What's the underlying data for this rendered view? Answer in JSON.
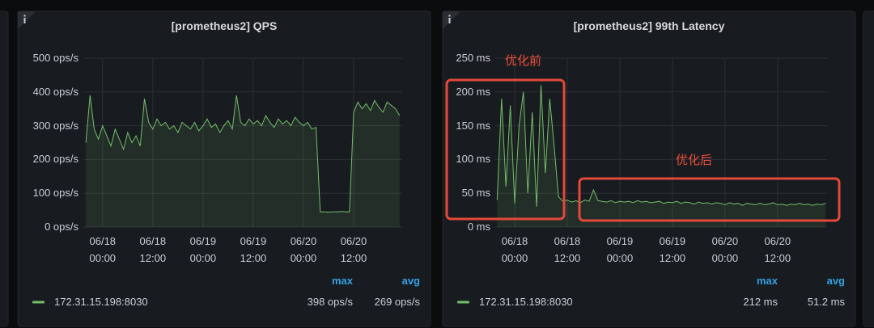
{
  "chart_data": [
    {
      "type": "line",
      "title": "[prometheus2] QPS",
      "x": [
        "06/17 20:00",
        "06/17 21:00",
        "06/17 22:00",
        "06/17 23:00",
        "06/18 00:00",
        "06/18 01:00",
        "06/18 02:00",
        "06/18 03:00",
        "06/18 04:00",
        "06/18 05:00",
        "06/18 06:00",
        "06/18 07:00",
        "06/18 08:00",
        "06/18 09:00",
        "06/18 10:00",
        "06/18 11:00",
        "06/18 12:00",
        "06/18 13:00",
        "06/18 14:00",
        "06/18 15:00",
        "06/18 16:00",
        "06/18 17:00",
        "06/18 18:00",
        "06/18 19:00",
        "06/18 20:00",
        "06/18 21:00",
        "06/18 22:00",
        "06/18 23:00",
        "06/19 00:00",
        "06/19 01:00",
        "06/19 02:00",
        "06/19 03:00",
        "06/19 04:00",
        "06/19 05:00",
        "06/19 06:00",
        "06/19 07:00",
        "06/19 08:00",
        "06/19 09:00",
        "06/19 10:00",
        "06/19 11:00",
        "06/19 12:00",
        "06/19 13:00",
        "06/19 14:00",
        "06/19 15:00",
        "06/19 16:00",
        "06/19 17:00",
        "06/19 18:00",
        "06/19 19:00",
        "06/19 20:00",
        "06/19 21:00",
        "06/19 22:00",
        "06/19 23:00",
        "06/20 00:00",
        "06/20 01:00",
        "06/20 02:00",
        "06/20 03:00",
        "06/20 04:00",
        "06/20 05:00",
        "06/20 06:00",
        "06/20 07:00",
        "06/20 08:00",
        "06/20 09:00",
        "06/20 10:00",
        "06/20 11:00",
        "06/20 12:00",
        "06/20 13:00",
        "06/20 14:00",
        "06/20 15:00",
        "06/20 16:00",
        "06/20 17:00",
        "06/20 18:00",
        "06/20 19:00",
        "06/20 20:00",
        "06/20 21:00",
        "06/20 22:00",
        "06/20 23:00"
      ],
      "series": [
        {
          "name": "172.31.15.198:8030",
          "color": "#73bf69",
          "values": [
            250,
            390,
            290,
            260,
            300,
            270,
            240,
            290,
            260,
            230,
            280,
            250,
            270,
            240,
            380,
            310,
            290,
            320,
            300,
            310,
            290,
            300,
            280,
            310,
            300,
            290,
            310,
            285,
            300,
            320,
            295,
            305,
            280,
            300,
            315,
            290,
            390,
            310,
            300,
            320,
            305,
            315,
            300,
            330,
            310,
            295,
            320,
            305,
            315,
            300,
            325,
            310,
            300,
            310,
            290,
            295,
            45,
            45,
            44,
            45,
            45,
            46,
            45,
            45,
            340,
            370,
            350,
            365,
            345,
            375,
            355,
            340,
            370,
            360,
            350,
            330
          ]
        }
      ],
      "xlim": [
        "06/17 19:24",
        "06/20 23:36"
      ],
      "xticks": [
        "06/18 00:00",
        "06/18 12:00",
        "06/19 00:00",
        "06/19 12:00",
        "06/20 00:00",
        "06/20 12:00"
      ],
      "ylim": [
        0,
        500
      ],
      "yticks": [
        {
          "value": 0,
          "label": "0 ops/s"
        },
        {
          "value": 100,
          "label": "100 ops/s"
        },
        {
          "value": 200,
          "label": "200 ops/s"
        },
        {
          "value": 300,
          "label": "300 ops/s"
        },
        {
          "value": 400,
          "label": "400 ops/s"
        },
        {
          "value": 500,
          "label": "500 ops/s"
        }
      ],
      "grid": true,
      "fill": true,
      "legend": "bottom",
      "legend_stats": [
        {
          "name": "max",
          "value": "398 ops/s"
        },
        {
          "name": "avg",
          "value": "269 ops/s"
        }
      ]
    },
    {
      "type": "line",
      "title": "[prometheus2] 99th Latency",
      "x": [
        "06/17 20:00",
        "06/17 21:00",
        "06/17 22:00",
        "06/17 23:00",
        "06/18 00:00",
        "06/18 01:00",
        "06/18 02:00",
        "06/18 03:00",
        "06/18 04:00",
        "06/18 05:00",
        "06/18 06:00",
        "06/18 07:00",
        "06/18 08:00",
        "06/18 09:00",
        "06/18 10:00",
        "06/18 11:00",
        "06/18 12:00",
        "06/18 13:00",
        "06/18 14:00",
        "06/18 15:00",
        "06/18 16:00",
        "06/18 17:00",
        "06/18 18:00",
        "06/18 19:00",
        "06/18 20:00",
        "06/18 21:00",
        "06/18 22:00",
        "06/18 23:00",
        "06/19 00:00",
        "06/19 01:00",
        "06/19 02:00",
        "06/19 03:00",
        "06/19 04:00",
        "06/19 05:00",
        "06/19 06:00",
        "06/19 07:00",
        "06/19 08:00",
        "06/19 09:00",
        "06/19 10:00",
        "06/19 11:00",
        "06/19 12:00",
        "06/19 13:00",
        "06/19 14:00",
        "06/19 15:00",
        "06/19 16:00",
        "06/19 17:00",
        "06/19 18:00",
        "06/19 19:00",
        "06/19 20:00",
        "06/19 21:00",
        "06/19 22:00",
        "06/19 23:00",
        "06/20 00:00",
        "06/20 01:00",
        "06/20 02:00",
        "06/20 03:00",
        "06/20 04:00",
        "06/20 05:00",
        "06/20 06:00",
        "06/20 07:00",
        "06/20 08:00",
        "06/20 09:00",
        "06/20 10:00",
        "06/20 11:00",
        "06/20 12:00",
        "06/20 13:00",
        "06/20 14:00",
        "06/20 15:00",
        "06/20 16:00",
        "06/20 17:00",
        "06/20 18:00",
        "06/20 19:00",
        "06/20 20:00",
        "06/20 21:00",
        "06/20 22:00",
        "06/20 23:00"
      ],
      "series": [
        {
          "name": "172.31.15.198:8030",
          "color": "#73bf69",
          "values": [
            40,
            190,
            60,
            180,
            35,
            150,
            200,
            50,
            170,
            30,
            210,
            80,
            190,
            120,
            45,
            38,
            40,
            37,
            39,
            36,
            40,
            38,
            55,
            39,
            38,
            37,
            39,
            36,
            38,
            37,
            38,
            36,
            39,
            37,
            38,
            36,
            37,
            38,
            35,
            37,
            36,
            38,
            35,
            37,
            36,
            34,
            37,
            35,
            36,
            34,
            36,
            35,
            33,
            36,
            34,
            35,
            32,
            35,
            34,
            33,
            35,
            33,
            34,
            36,
            33,
            34,
            32,
            34,
            33,
            35,
            33,
            34,
            32,
            34,
            33,
            35
          ]
        }
      ],
      "xlim": [
        "06/17 19:34",
        "06/20 23:18"
      ],
      "xticks": [
        "06/18 00:00",
        "06/18 12:00",
        "06/19 00:00",
        "06/19 12:00",
        "06/20 00:00",
        "06/20 12:00"
      ],
      "ylim": [
        0,
        250
      ],
      "yticks": [
        {
          "value": 0,
          "label": "0 ms"
        },
        {
          "value": 50,
          "label": "50 ms"
        },
        {
          "value": 100,
          "label": "100 ms"
        },
        {
          "value": 150,
          "label": "150 ms"
        },
        {
          "value": 200,
          "label": "200 ms"
        },
        {
          "value": 250,
          "label": "250 ms"
        }
      ],
      "grid": true,
      "fill": true,
      "legend": "bottom",
      "legend_stats": [
        {
          "name": "max",
          "value": "212 ms"
        },
        {
          "name": "avg",
          "value": "51.2 ms"
        }
      ],
      "annotations": [
        {
          "text": "优化前"
        },
        {
          "text": "优化后"
        }
      ]
    }
  ]
}
